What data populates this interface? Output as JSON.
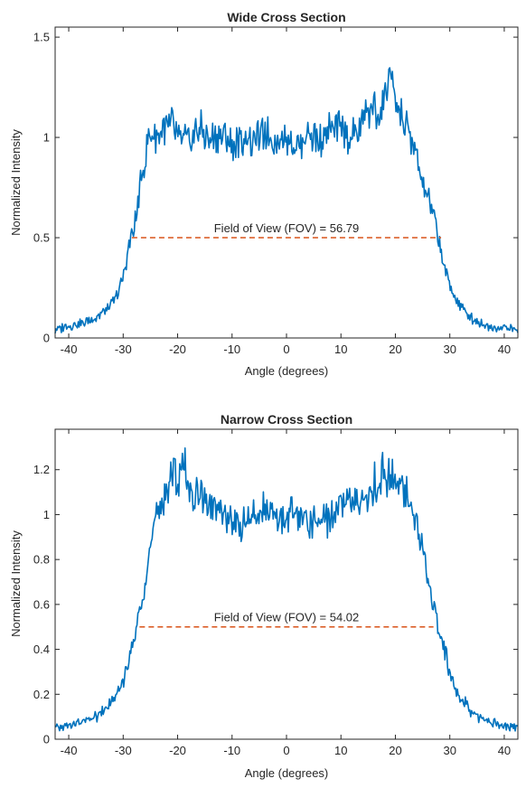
{
  "chart_data": [
    {
      "type": "line",
      "title": "Wide Cross Section",
      "xlabel": "Angle (degrees)",
      "ylabel": "Normalized Intensity",
      "xlim": [
        -42.5,
        42.5
      ],
      "ylim": [
        0,
        1.55
      ],
      "xticks": [
        -40,
        -30,
        -20,
        -10,
        0,
        10,
        20,
        30,
        40
      ],
      "xtick_labels": [
        "-40",
        "-30",
        "-20",
        "-10",
        "0",
        "10",
        "20",
        "30",
        "40"
      ],
      "yticks": [
        0,
        0.5,
        1,
        1.5
      ],
      "ytick_labels": [
        "0",
        "0.5",
        "1",
        "1.5"
      ],
      "grid": false,
      "line_color": "#0072BD",
      "fov_color": "#D95319",
      "series": [
        {
          "x": [
            -42.5,
            -40,
            -37,
            -35,
            -33,
            -31,
            -30,
            -29.5,
            -29,
            -28.5,
            -28,
            -27.5,
            -27,
            -26.5,
            -26,
            -25.5,
            -25,
            -24,
            -23,
            -22,
            -21,
            -20,
            -18,
            -16,
            -14,
            -12,
            -10,
            -8,
            -6,
            -4,
            -2,
            0,
            2,
            4,
            6,
            8,
            10,
            12,
            14,
            15,
            16,
            17,
            18,
            18.5,
            19,
            19.5,
            20,
            21,
            22,
            23,
            24,
            25,
            26,
            27,
            27.5,
            28,
            28.5,
            29,
            30,
            31,
            33,
            35,
            37,
            40,
            42.5
          ],
          "y": [
            0.04,
            0.06,
            0.08,
            0.1,
            0.14,
            0.22,
            0.3,
            0.38,
            0.46,
            0.5,
            0.54,
            0.62,
            0.72,
            0.82,
            0.9,
            0.96,
            1.0,
            1.02,
            1.05,
            1.04,
            1.07,
            1.0,
            0.97,
            1.05,
            0.98,
            1.02,
            0.96,
            1.0,
            0.98,
            1.03,
            0.97,
            1.0,
            0.96,
            1.02,
            0.98,
            1.04,
            1.05,
            1.0,
            1.08,
            1.12,
            1.14,
            1.1,
            1.18,
            1.22,
            1.39,
            1.2,
            1.15,
            1.12,
            1.05,
            0.98,
            0.88,
            0.78,
            0.7,
            0.62,
            0.55,
            0.5,
            0.42,
            0.35,
            0.26,
            0.2,
            0.12,
            0.08,
            0.06,
            0.05,
            0.04
          ]
        }
      ],
      "annotations": [
        {
          "text": "Field of View (FOV) = 56.79",
          "line_y": 0.5,
          "x_start": -28.4,
          "x_end": 28.4
        }
      ]
    },
    {
      "type": "line",
      "title": "Narrow Cross Section",
      "xlabel": "Angle (degrees)",
      "ylabel": "Normalized Intensity",
      "xlim": [
        -42.5,
        42.5
      ],
      "ylim": [
        0,
        1.38
      ],
      "xticks": [
        -40,
        -30,
        -20,
        -10,
        0,
        10,
        20,
        30,
        40
      ],
      "xtick_labels": [
        "-40",
        "-30",
        "-20",
        "-10",
        "0",
        "10",
        "20",
        "30",
        "40"
      ],
      "yticks": [
        0,
        0.2,
        0.4,
        0.6,
        0.8,
        1,
        1.2
      ],
      "ytick_labels": [
        "0",
        "0.2",
        "0.4",
        "0.6",
        "0.8",
        "1",
        "1.2"
      ],
      "grid": false,
      "line_color": "#0072BD",
      "fov_color": "#D95319",
      "series": [
        {
          "x": [
            -42.5,
            -40,
            -37,
            -35,
            -33,
            -31,
            -30,
            -29,
            -28,
            -27.5,
            -27,
            -26.5,
            -26,
            -25,
            -24,
            -23,
            -22,
            -21,
            -20,
            -19,
            -18,
            -16,
            -14,
            -12,
            -10,
            -8,
            -6,
            -4,
            -2,
            0,
            2,
            4,
            6,
            8,
            10,
            12,
            14,
            16,
            17,
            18,
            19,
            20,
            21,
            22,
            23,
            24,
            25,
            26,
            27,
            27.5,
            28,
            29,
            30,
            31,
            33,
            35,
            37,
            40,
            42.5
          ],
          "y": [
            0.05,
            0.06,
            0.08,
            0.1,
            0.14,
            0.2,
            0.26,
            0.35,
            0.44,
            0.5,
            0.56,
            0.64,
            0.72,
            0.85,
            0.96,
            1.05,
            1.12,
            1.2,
            1.15,
            1.22,
            1.12,
            1.08,
            1.05,
            1.0,
            0.98,
            0.96,
            1.0,
            1.02,
            0.98,
            1.0,
            1.01,
            0.97,
            0.96,
            1.0,
            1.02,
            1.05,
            1.08,
            1.12,
            1.15,
            1.2,
            1.17,
            1.16,
            1.12,
            1.1,
            1.05,
            0.95,
            0.85,
            0.73,
            0.6,
            0.55,
            0.5,
            0.4,
            0.3,
            0.22,
            0.15,
            0.1,
            0.08,
            0.06,
            0.05
          ]
        }
      ],
      "annotations": [
        {
          "text": "Field of View (FOV) = 54.02",
          "line_y": 0.5,
          "x_start": -27.0,
          "x_end": 27.0
        }
      ]
    }
  ]
}
